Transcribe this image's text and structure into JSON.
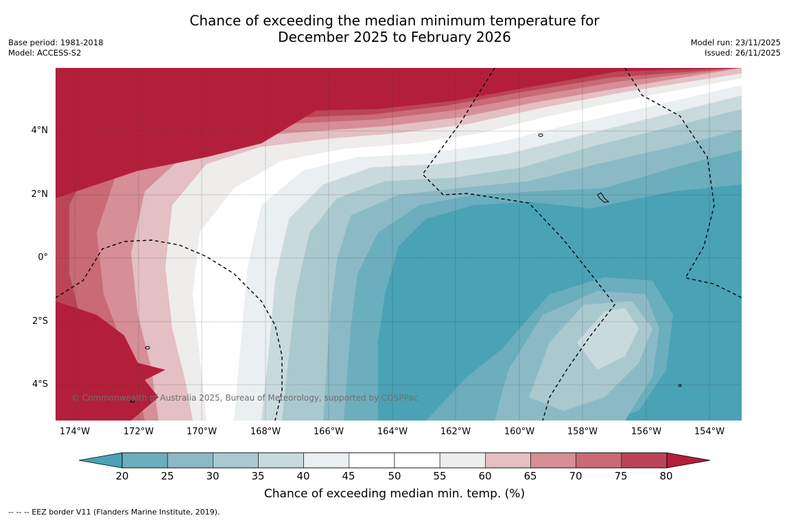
{
  "title_line1": "Chance of exceeding the median minimum temperature for",
  "title_line2": "December 2025 to February 2026",
  "meta_left": {
    "base_period": "Base period: 1981-2018",
    "model": "Model: ACCESS-S2"
  },
  "meta_right": {
    "model_run": "Model run: 23/11/2025",
    "issued": "Issued: 26/11/2025"
  },
  "lat_labels": [
    "4°N",
    "2°N",
    "0°",
    "2°S",
    "4°S"
  ],
  "lon_labels": [
    "174°W",
    "172°W",
    "170°W",
    "168°W",
    "166°W",
    "164°W",
    "162°W",
    "160°W",
    "158°W",
    "156°W",
    "154°W"
  ],
  "copyright": "© Commonwealth of Australia 2025, Bureau of Meteorology, supported by COSPPac",
  "colorbar": {
    "ticks": [
      "20",
      "25",
      "30",
      "35",
      "40",
      "45",
      "50",
      "55",
      "60",
      "65",
      "70",
      "75",
      "80"
    ],
    "low_color": "#4aa2b5",
    "high_color": "#b31f3a",
    "colors": [
      "#6baebd",
      "#8bbac6",
      "#a9c9cf",
      "#c9dadd",
      "#eaeff1",
      "#ffffff",
      "#ffffff",
      "#efecec",
      "#e4bfc3",
      "#d68e97",
      "#c96a75",
      "#bb4557"
    ],
    "title": "Chance of exceeding median min. temp. (%)"
  },
  "eez_note": "--  --  -- EEZ border V11 (Flanders Marine Institute, 2019)."
}
